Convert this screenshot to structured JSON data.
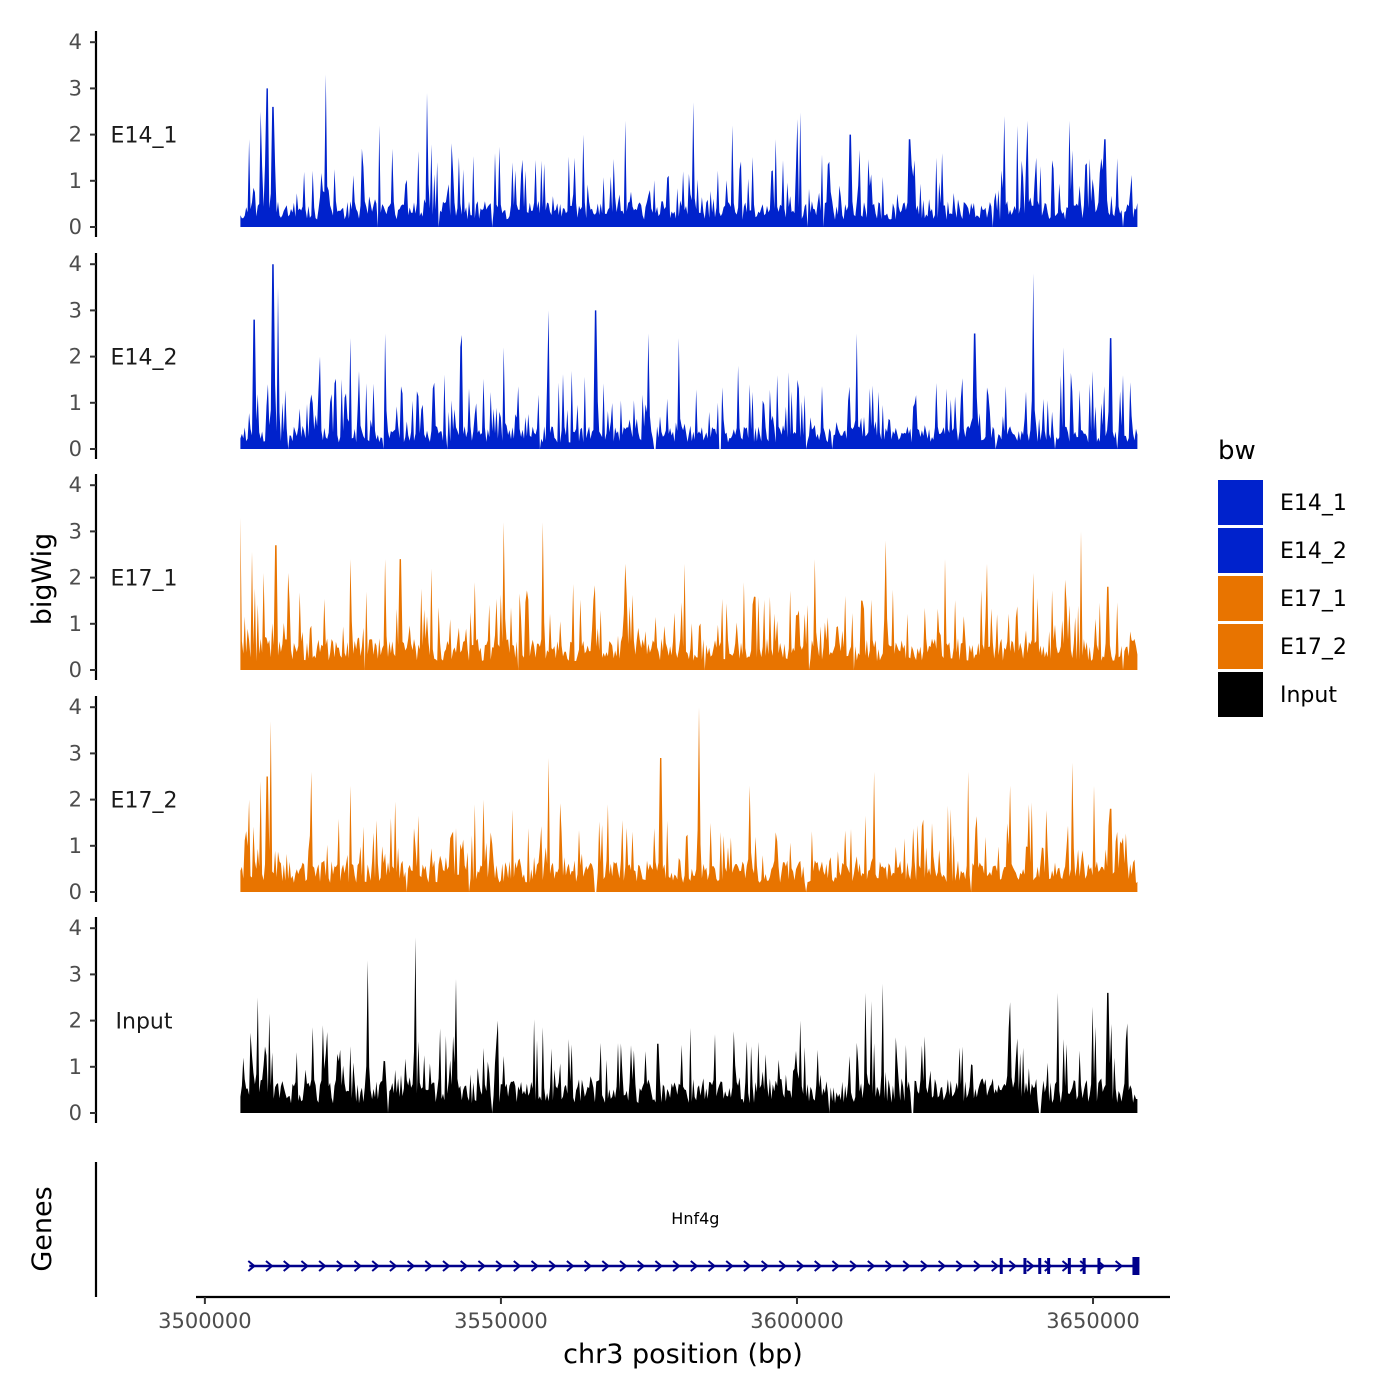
{
  "chart_data": {
    "type": "area",
    "title": "",
    "xlabel": "chr3 position (bp)",
    "ylabel": "bigWig",
    "gene_track_label": "Genes",
    "xlim": [
      3498500,
      3663000
    ],
    "data_range": [
      3506000,
      3657500
    ],
    "ylim": [
      0,
      4.2
    ],
    "x_ticks": [
      3500000,
      3550000,
      3600000,
      3650000
    ],
    "x_tick_labels": [
      "3500000",
      "3550000",
      "3600000",
      "3650000"
    ],
    "y_ticks": [
      0,
      1,
      2,
      3,
      4
    ],
    "y_tick_labels": [
      "0",
      "1",
      "2",
      "3",
      "4"
    ],
    "grid": false,
    "legend": {
      "title": "bw",
      "position": "right",
      "entries": [
        {
          "name": "E14_1",
          "color": "#0022CC"
        },
        {
          "name": "E14_2",
          "color": "#0022CC"
        },
        {
          "name": "E17_1",
          "color": "#E87400"
        },
        {
          "name": "E17_2",
          "color": "#E87400"
        },
        {
          "name": "Input",
          "color": "#000000"
        }
      ]
    },
    "series": [
      {
        "name": "E14_1",
        "color": "#0022CC",
        "baseline": 0.45,
        "seed": 11,
        "peaks": [
          [
            3507500,
            1.9
          ],
          [
            3509500,
            2.5
          ],
          [
            3510500,
            3.0
          ],
          [
            3511500,
            2.6
          ],
          [
            3520500,
            3.3
          ],
          [
            3529500,
            2.2
          ],
          [
            3537500,
            2.9
          ],
          [
            3549000,
            1.6
          ],
          [
            3564000,
            2.0
          ],
          [
            3571000,
            2.3
          ],
          [
            3582500,
            2.7
          ],
          [
            3589000,
            2.2
          ],
          [
            3596500,
            1.9
          ],
          [
            3609000,
            2.0
          ],
          [
            3619000,
            1.9
          ],
          [
            3624500,
            1.6
          ],
          [
            3635000,
            2.4
          ],
          [
            3639000,
            2.3
          ],
          [
            3646000,
            2.3
          ],
          [
            3652000,
            1.9
          ]
        ],
        "gaps": [
          3529300,
          3539500,
          3548500,
          3601800,
          3604500,
          3633000,
          3655000
        ]
      },
      {
        "name": "E14_2",
        "color": "#0022CC",
        "baseline": 0.4,
        "seed": 23,
        "peaks": [
          [
            3508300,
            2.8
          ],
          [
            3511500,
            4.0
          ],
          [
            3512300,
            3.5
          ],
          [
            3519500,
            2.0
          ],
          [
            3524500,
            2.4
          ],
          [
            3530500,
            2.5
          ],
          [
            3550500,
            2.2
          ],
          [
            3558000,
            3.0
          ],
          [
            3566000,
            3.0
          ],
          [
            3575000,
            2.5
          ],
          [
            3580000,
            2.4
          ],
          [
            3590000,
            1.8
          ],
          [
            3610000,
            2.5
          ],
          [
            3630000,
            2.5
          ],
          [
            3640000,
            3.8
          ],
          [
            3645000,
            2.2
          ],
          [
            3653000,
            2.4
          ],
          [
            3655000,
            1.6
          ]
        ],
        "gaps": [
          3514000,
          3530300,
          3541000,
          3556500,
          3576000,
          3587000,
          3601500,
          3606000,
          3633500,
          3643500,
          3654000
        ]
      },
      {
        "name": "E17_1",
        "color": "#E87400",
        "baseline": 0.55,
        "seed": 37,
        "peaks": [
          [
            3506000,
            3.3
          ],
          [
            3510000,
            2.1
          ],
          [
            3512000,
            2.7
          ],
          [
            3514000,
            2.1
          ],
          [
            3524500,
            2.4
          ],
          [
            3530500,
            2.4
          ],
          [
            3533000,
            2.4
          ],
          [
            3545500,
            1.9
          ],
          [
            3550500,
            3.2
          ],
          [
            3557000,
            3.2
          ],
          [
            3571000,
            2.3
          ],
          [
            3581000,
            2.3
          ],
          [
            3591000,
            1.9
          ],
          [
            3603000,
            2.4
          ],
          [
            3615000,
            2.8
          ],
          [
            3625000,
            2.4
          ],
          [
            3632000,
            2.3
          ],
          [
            3640000,
            2.1
          ],
          [
            3648000,
            3.0
          ],
          [
            3652500,
            1.8
          ]
        ],
        "gaps": [
          3527000,
          3553000,
          3584500,
          3602000,
          3609500,
          3655000
        ]
      },
      {
        "name": "E17_2",
        "color": "#E87400",
        "baseline": 0.55,
        "seed": 53,
        "peaks": [
          [
            3507500,
            2.0
          ],
          [
            3509500,
            2.4
          ],
          [
            3510500,
            2.5
          ],
          [
            3511200,
            3.7
          ],
          [
            3518000,
            2.6
          ],
          [
            3524500,
            2.3
          ],
          [
            3531500,
            1.6
          ],
          [
            3547000,
            2.0
          ],
          [
            3558000,
            2.9
          ],
          [
            3568000,
            1.9
          ],
          [
            3577000,
            2.9
          ],
          [
            3583500,
            4.0
          ],
          [
            3592000,
            2.3
          ],
          [
            3613000,
            2.6
          ],
          [
            3629000,
            2.6
          ],
          [
            3636000,
            2.3
          ],
          [
            3646500,
            2.8
          ],
          [
            3653000,
            1.8
          ]
        ],
        "gaps": [
          3534000,
          3544500,
          3566000,
          3601500,
          3629500
        ]
      },
      {
        "name": "Input",
        "color": "#000000",
        "baseline": 0.6,
        "seed": 71,
        "peaks": [
          [
            3506500,
            1.2
          ],
          [
            3509000,
            2.5
          ],
          [
            3520000,
            1.9
          ],
          [
            3527500,
            3.3
          ],
          [
            3535500,
            3.8
          ],
          [
            3542500,
            2.9
          ],
          [
            3549500,
            2.0
          ],
          [
            3561500,
            1.6
          ],
          [
            3576500,
            1.5
          ],
          [
            3600500,
            2.0
          ],
          [
            3611500,
            2.6
          ],
          [
            3614500,
            2.8
          ],
          [
            3636000,
            2.4
          ],
          [
            3644000,
            2.6
          ],
          [
            3650000,
            2.3
          ],
          [
            3652500,
            2.6
          ],
          [
            3655500,
            1.6
          ]
        ],
        "gaps": [
          3531000,
          3548500,
          3605500,
          3619500,
          3641000
        ]
      }
    ],
    "gene": {
      "name": "Hnf4g",
      "start": 3507500,
      "end": 3657500,
      "strand": "+",
      "color": "#00008B",
      "exons": [
        3634500,
        3638500,
        3641000,
        3642500,
        3646000,
        3648500,
        3651000,
        3657000
      ]
    }
  }
}
